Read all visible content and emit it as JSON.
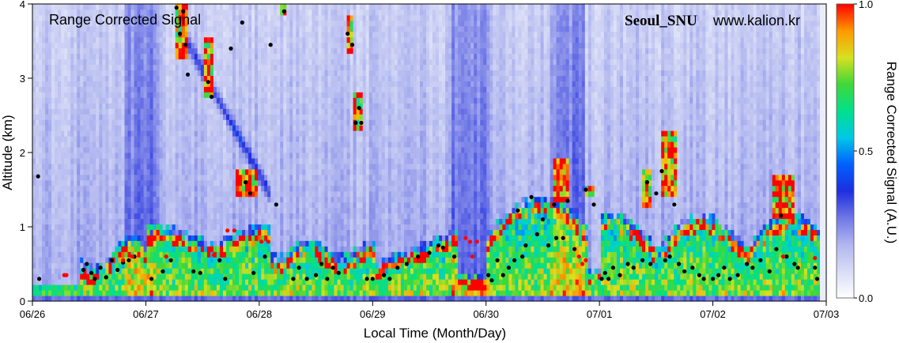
{
  "chart_data": {
    "type": "heatmap",
    "title": "Range Corrected Signal",
    "station": "Seoul_SNU",
    "site": "www.kalion.kr",
    "xlabel": "Local Time (Month/Day)",
    "ylabel": "Altitude (km)",
    "colorbar_label": "Range Corrected Signal (A.U.)",
    "x_ticks": [
      "06/26",
      "06/27",
      "06/28",
      "06/29",
      "06/30",
      "07/01",
      "07/02",
      "07/03"
    ],
    "y_ticks": [
      "0",
      "1",
      "2",
      "3",
      "4"
    ],
    "colorbar_ticks": [
      "0.0",
      "0.5",
      "1.0"
    ],
    "xlim_days": [
      0,
      7
    ],
    "ylim": [
      0,
      4
    ],
    "clim": [
      0,
      1
    ],
    "colorscale": [
      "#ffffff",
      "#d8dcf6",
      "#b0b6ef",
      "#6f77e6",
      "#1e2ee0",
      "#0060ff",
      "#00c8e6",
      "#00e08c",
      "#40d838",
      "#d8e020",
      "#ff9800",
      "#ff0000"
    ],
    "legend": "right",
    "grid": false,
    "series": [
      {
        "marker_color": "#000000",
        "points": [
          [
            0.05,
            1.68
          ],
          [
            0.06,
            0.3
          ],
          [
            0.45,
            0.42
          ],
          [
            0.48,
            0.5
          ],
          [
            0.52,
            0.38
          ],
          [
            0.55,
            0.3
          ],
          [
            0.6,
            0.45
          ],
          [
            0.65,
            0.32
          ],
          [
            0.7,
            0.55
          ],
          [
            0.75,
            0.42
          ],
          [
            0.8,
            0.52
          ],
          [
            0.85,
            0.55
          ],
          [
            0.9,
            0.6
          ],
          [
            1.05,
            0.3
          ],
          [
            1.15,
            0.4
          ],
          [
            1.22,
            0.55
          ],
          [
            1.27,
            3.95
          ],
          [
            1.3,
            3.6
          ],
          [
            1.33,
            3.9
          ],
          [
            1.35,
            3.45
          ],
          [
            1.37,
            3.05
          ],
          [
            1.42,
            0.4
          ],
          [
            1.48,
            0.38
          ],
          [
            1.55,
            2.95
          ],
          [
            1.58,
            2.75
          ],
          [
            1.65,
            0.55
          ],
          [
            1.7,
            0.3
          ],
          [
            1.75,
            3.4
          ],
          [
            1.85,
            3.75
          ],
          [
            1.88,
            1.6
          ],
          [
            1.92,
            1.45
          ],
          [
            1.95,
            0.38
          ],
          [
            2.05,
            0.6
          ],
          [
            2.1,
            3.45
          ],
          [
            2.15,
            1.3
          ],
          [
            2.22,
            3.9
          ],
          [
            2.3,
            0.3
          ],
          [
            2.35,
            0.45
          ],
          [
            2.42,
            0.3
          ],
          [
            2.5,
            0.35
          ],
          [
            2.55,
            0.5
          ],
          [
            2.6,
            0.3
          ],
          [
            2.65,
            0.45
          ],
          [
            2.7,
            0.38
          ],
          [
            2.78,
            3.6
          ],
          [
            2.82,
            3.45
          ],
          [
            2.85,
            2.4
          ],
          [
            2.88,
            2.6
          ],
          [
            2.9,
            2.4
          ],
          [
            2.95,
            0.3
          ],
          [
            3.0,
            0.3
          ],
          [
            3.1,
            0.35
          ],
          [
            3.15,
            0.3
          ],
          [
            3.22,
            0.45
          ],
          [
            3.3,
            0.5
          ],
          [
            3.4,
            0.6
          ],
          [
            3.5,
            0.65
          ],
          [
            3.58,
            0.75
          ],
          [
            3.62,
            0.72
          ],
          [
            3.72,
            0.6
          ],
          [
            4.02,
            0.35
          ],
          [
            4.05,
            0.28
          ],
          [
            4.1,
            0.55
          ],
          [
            4.15,
            0.35
          ],
          [
            4.2,
            0.45
          ],
          [
            4.25,
            0.55
          ],
          [
            4.28,
            1.22
          ],
          [
            4.32,
            0.6
          ],
          [
            4.35,
            0.75
          ],
          [
            4.4,
            1.4
          ],
          [
            4.45,
            0.9
          ],
          [
            4.5,
            1.1
          ],
          [
            4.55,
            0.75
          ],
          [
            4.6,
            1.3
          ],
          [
            4.62,
            0.85
          ],
          [
            4.68,
            0.85
          ],
          [
            4.72,
            1.35
          ],
          [
            4.78,
            0.7
          ],
          [
            4.88,
            1.5
          ],
          [
            4.95,
            1.3
          ],
          [
            5.02,
            0.3
          ],
          [
            5.05,
            0.38
          ],
          [
            5.08,
            0.3
          ],
          [
            5.12,
            0.45
          ],
          [
            5.18,
            0.35
          ],
          [
            5.25,
            0.5
          ],
          [
            5.3,
            0.45
          ],
          [
            5.38,
            0.55
          ],
          [
            5.42,
            1.6
          ],
          [
            5.45,
            0.5
          ],
          [
            5.5,
            1.45
          ],
          [
            5.55,
            1.75
          ],
          [
            5.58,
            0.55
          ],
          [
            5.62,
            0.6
          ],
          [
            5.66,
            1.3
          ],
          [
            5.7,
            0.5
          ],
          [
            5.75,
            0.4
          ],
          [
            5.82,
            0.45
          ],
          [
            5.88,
            0.35
          ],
          [
            5.92,
            0.3
          ],
          [
            6.0,
            0.3
          ],
          [
            6.05,
            0.35
          ],
          [
            6.1,
            0.45
          ],
          [
            6.15,
            0.3
          ],
          [
            6.22,
            0.35
          ],
          [
            6.3,
            0.5
          ],
          [
            6.35,
            0.45
          ],
          [
            6.42,
            0.55
          ],
          [
            6.5,
            0.4
          ],
          [
            6.56,
            0.7
          ],
          [
            6.6,
            1.15
          ],
          [
            6.65,
            0.6
          ],
          [
            6.72,
            0.5
          ],
          [
            6.75,
            0.45
          ],
          [
            6.9,
            0.45
          ],
          [
            6.92,
            0.3
          ]
        ]
      },
      {
        "marker_color": "#ff0000",
        "points": [
          [
            0.28,
            0.35
          ],
          [
            0.3,
            0.35
          ],
          [
            0.8,
            0.55
          ],
          [
            0.88,
            0.6
          ],
          [
            1.18,
            0.6
          ],
          [
            1.6,
            0.62
          ],
          [
            1.72,
            0.95
          ],
          [
            1.78,
            0.95
          ],
          [
            2.02,
            0.8
          ],
          [
            2.08,
            0.8
          ],
          [
            3.82,
            0.85
          ],
          [
            3.86,
            0.8
          ],
          [
            3.92,
            0.8
          ],
          [
            3.88,
            0.6
          ],
          [
            4.82,
            0.6
          ],
          [
            4.85,
            0.5
          ],
          [
            4.88,
            0.55
          ],
          [
            6.62,
            0.6
          ],
          [
            6.9,
            0.58
          ]
        ]
      }
    ]
  }
}
